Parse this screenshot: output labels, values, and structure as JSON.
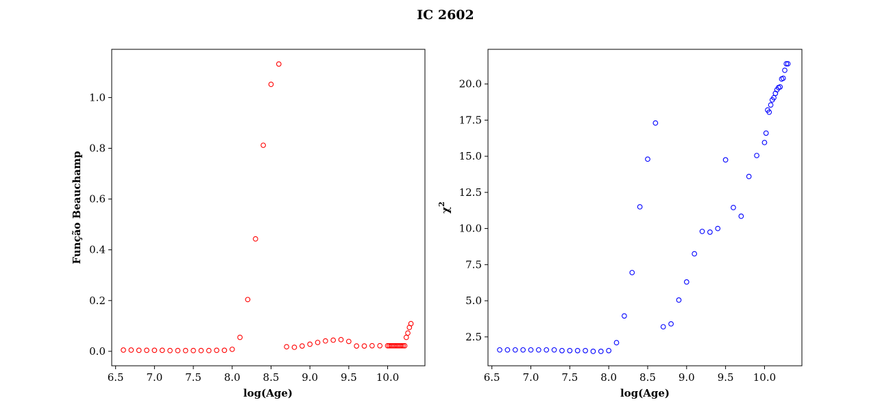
{
  "figure": {
    "title": "IC 2602"
  },
  "chart_data": [
    {
      "type": "scatter",
      "xlabel": "log(Age)",
      "ylabel": "Função Beauchamp",
      "xlim": [
        6.45,
        10.48
      ],
      "ylim": [
        -0.057,
        1.19
      ],
      "xticks": [
        6.5,
        7.0,
        7.5,
        8.0,
        8.5,
        9.0,
        9.5,
        10.0
      ],
      "yticks": [
        0.0,
        0.2,
        0.4,
        0.6,
        0.8,
        1.0
      ],
      "xtick_labels": [
        "6.5",
        "7.0",
        "7.5",
        "8.0",
        "8.5",
        "9.0",
        "9.5",
        "10.0"
      ],
      "ytick_labels": [
        "0.0",
        "0.2",
        "0.4",
        "0.6",
        "0.8",
        "1.0"
      ],
      "grid": false,
      "marker": "hollow-circle",
      "color": "#ff0000",
      "x": [
        6.6,
        6.7,
        6.8,
        6.9,
        7.0,
        7.1,
        7.2,
        7.3,
        7.4,
        7.5,
        7.6,
        7.7,
        7.8,
        7.9,
        8.0,
        8.1,
        8.2,
        8.3,
        8.4,
        8.5,
        8.6,
        8.7,
        8.8,
        8.9,
        9.0,
        9.1,
        9.2,
        9.3,
        9.4,
        9.5,
        9.6,
        9.7,
        9.8,
        9.9,
        10.0,
        10.02,
        10.04,
        10.06,
        10.08,
        10.1,
        10.12,
        10.14,
        10.16,
        10.18,
        10.2,
        10.22,
        10.24,
        10.26,
        10.28,
        10.3
      ],
      "y": [
        0.005,
        0.005,
        0.004,
        0.004,
        0.004,
        0.004,
        0.003,
        0.003,
        0.003,
        0.003,
        0.003,
        0.003,
        0.004,
        0.004,
        0.008,
        0.055,
        0.204,
        0.443,
        0.812,
        1.052,
        1.132,
        0.018,
        0.016,
        0.021,
        0.028,
        0.035,
        0.041,
        0.044,
        0.046,
        0.039,
        0.021,
        0.021,
        0.022,
        0.022,
        0.022,
        0.022,
        0.022,
        0.022,
        0.022,
        0.022,
        0.022,
        0.022,
        0.022,
        0.022,
        0.022,
        0.022,
        0.055,
        0.072,
        0.094,
        0.109
      ]
    },
    {
      "type": "scatter",
      "xlabel": "log(Age)",
      "ylabel": "χ",
      "ylabel_superscript": "2",
      "xlim": [
        6.45,
        10.48
      ],
      "ylim": [
        0.5,
        22.4
      ],
      "xticks": [
        6.5,
        7.0,
        7.5,
        8.0,
        8.5,
        9.0,
        9.5,
        10.0
      ],
      "yticks": [
        2.5,
        5.0,
        7.5,
        10.0,
        12.5,
        15.0,
        17.5,
        20.0
      ],
      "xtick_labels": [
        "6.5",
        "7.0",
        "7.5",
        "8.0",
        "8.5",
        "9.0",
        "9.5",
        "10.0"
      ],
      "ytick_labels": [
        "2.5",
        "5.0",
        "7.5",
        "10.0",
        "12.5",
        "15.0",
        "17.5",
        "20.0"
      ],
      "grid": false,
      "marker": "hollow-circle",
      "color": "#0000ff",
      "x": [
        6.6,
        6.7,
        6.8,
        6.9,
        7.0,
        7.1,
        7.2,
        7.3,
        7.4,
        7.5,
        7.6,
        7.7,
        7.8,
        7.9,
        8.0,
        8.1,
        8.2,
        8.3,
        8.4,
        8.5,
        8.6,
        8.7,
        8.8,
        8.9,
        9.0,
        9.1,
        9.2,
        9.3,
        9.4,
        9.5,
        9.6,
        9.7,
        9.8,
        9.9,
        10.0,
        10.02,
        10.04,
        10.06,
        10.08,
        10.1,
        10.12,
        10.14,
        10.16,
        10.18,
        10.2,
        10.22,
        10.24,
        10.26,
        10.28,
        10.3
      ],
      "y": [
        1.6,
        1.6,
        1.6,
        1.6,
        1.6,
        1.6,
        1.6,
        1.6,
        1.55,
        1.55,
        1.55,
        1.55,
        1.5,
        1.5,
        1.55,
        2.1,
        3.95,
        6.95,
        11.5,
        14.8,
        17.3,
        3.2,
        3.4,
        5.05,
        6.3,
        8.25,
        9.8,
        9.75,
        10.0,
        14.75,
        11.45,
        10.85,
        13.6,
        15.05,
        15.95,
        16.6,
        18.2,
        18.05,
        18.55,
        18.9,
        19.05,
        19.35,
        19.6,
        19.75,
        19.8,
        20.35,
        20.4,
        20.95,
        21.4,
        21.4
      ]
    }
  ]
}
